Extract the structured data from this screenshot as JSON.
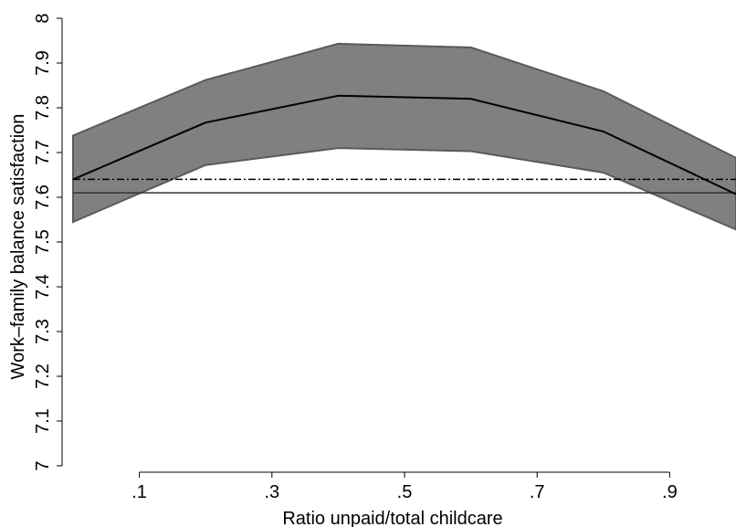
{
  "chart_data": {
    "type": "line",
    "title": "",
    "xlabel": "Ratio unpaid/total childcare",
    "ylabel": "Work–family balance satisfaction",
    "xlim": [
      0,
      1
    ],
    "ylim": [
      7,
      8
    ],
    "grid": false,
    "x_ticks": [
      {
        "value": 0.1,
        "label": ".1"
      },
      {
        "value": 0.3,
        "label": ".3"
      },
      {
        "value": 0.5,
        "label": ".5"
      },
      {
        "value": 0.7,
        "label": ".7"
      },
      {
        "value": 0.9,
        "label": ".9"
      }
    ],
    "y_ticks": [
      {
        "value": 7.0,
        "label": "7"
      },
      {
        "value": 7.1,
        "label": "7.1"
      },
      {
        "value": 7.2,
        "label": "7.2"
      },
      {
        "value": 7.3,
        "label": "7.3"
      },
      {
        "value": 7.4,
        "label": "7.4"
      },
      {
        "value": 7.5,
        "label": "7.5"
      },
      {
        "value": 7.6,
        "label": "7.6"
      },
      {
        "value": 7.7,
        "label": "7.7"
      },
      {
        "value": 7.8,
        "label": "7.8"
      },
      {
        "value": 7.9,
        "label": "7.9"
      },
      {
        "value": 8.0,
        "label": "8"
      }
    ],
    "x": [
      0,
      0.2,
      0.4,
      0.6,
      0.8,
      1.0
    ],
    "series": [
      {
        "values": [
          7.64,
          7.767,
          7.827,
          7.82,
          7.747,
          7.607
        ],
        "color": "#000000",
        "style": "solid"
      }
    ],
    "band": {
      "lower": [
        7.545,
        7.672,
        7.71,
        7.703,
        7.655,
        7.528
      ],
      "upper": [
        7.738,
        7.862,
        7.943,
        7.935,
        7.837,
        7.688
      ],
      "fill": "#808080",
      "stroke": "#5a5a5a"
    },
    "reference_lines": [
      {
        "y": 7.64,
        "style": "dashdot",
        "color": "#000000"
      },
      {
        "y": 7.61,
        "style": "solid",
        "color": "#333333"
      }
    ]
  }
}
